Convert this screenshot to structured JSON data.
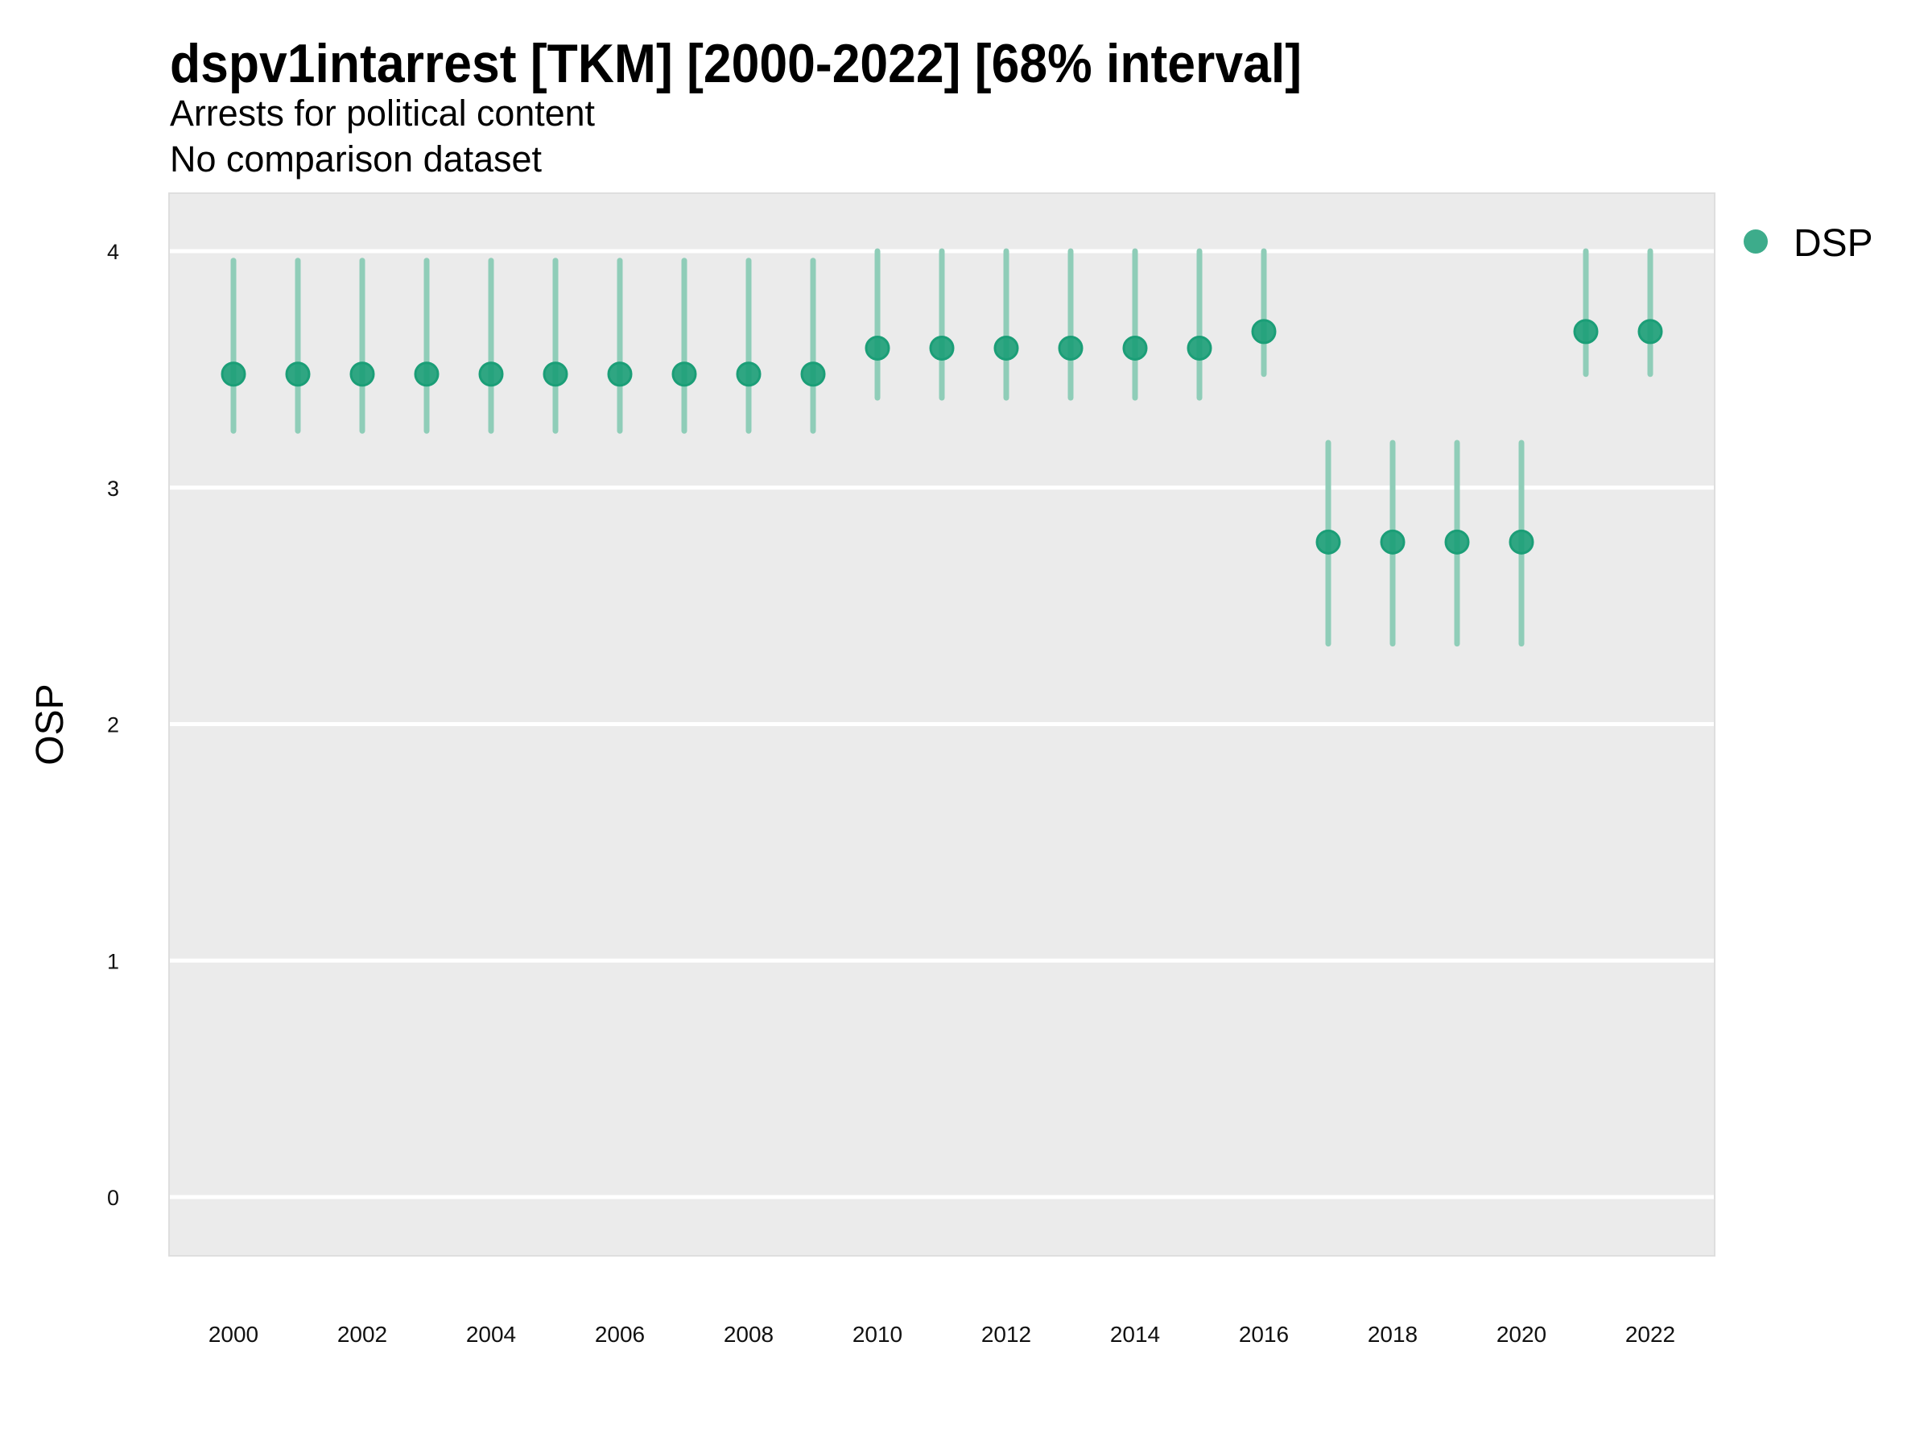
{
  "chart_data": {
    "type": "scatter",
    "title": "dspv1intarrest [TKM] [2000-2022] [68% interval]",
    "subtitle": [
      "Arrests for political content",
      "No comparison dataset"
    ],
    "xlabel": "",
    "ylabel": "OSP",
    "xlim": [
      1999,
      2023.5
    ],
    "ylim": [
      -0.25,
      4.3
    ],
    "grid": true,
    "legend": {
      "position": "right",
      "entries": [
        "DSP"
      ]
    },
    "x_ticks": [
      "2000",
      "2002",
      "2004",
      "2006",
      "2008",
      "2010",
      "2012",
      "2014",
      "2016",
      "2018",
      "2020",
      "2022"
    ],
    "y_ticks": [
      "0",
      "1",
      "2",
      "3",
      "4"
    ],
    "series": [
      {
        "name": "DSP",
        "color": "#1b9e77",
        "x": [
          2000,
          2001,
          2002,
          2003,
          2004,
          2005,
          2006,
          2007,
          2008,
          2009,
          2010,
          2011,
          2012,
          2013,
          2014,
          2015,
          2016,
          2017,
          2018,
          2019,
          2020,
          2021,
          2022
        ],
        "y": [
          3.48,
          3.48,
          3.48,
          3.48,
          3.48,
          3.48,
          3.48,
          3.48,
          3.48,
          3.48,
          3.59,
          3.59,
          3.59,
          3.59,
          3.59,
          3.59,
          3.66,
          2.77,
          2.77,
          2.77,
          2.77,
          3.66,
          3.66
        ],
        "lower": [
          3.24,
          3.24,
          3.24,
          3.24,
          3.24,
          3.24,
          3.24,
          3.24,
          3.24,
          3.24,
          3.38,
          3.38,
          3.38,
          3.38,
          3.38,
          3.38,
          3.48,
          2.34,
          2.34,
          2.34,
          2.34,
          3.48,
          3.48
        ],
        "upper": [
          3.96,
          3.96,
          3.96,
          3.96,
          3.96,
          3.96,
          3.96,
          3.96,
          3.96,
          3.96,
          4.0,
          4.0,
          4.0,
          4.0,
          4.0,
          4.0,
          4.0,
          3.19,
          3.19,
          3.19,
          3.19,
          4.0,
          4.0
        ]
      }
    ],
    "colors": {
      "panel_background": "#ebebeb",
      "gridline": "#ffffff",
      "errorbar": "#8fcdb8",
      "point": "#1b9e77"
    }
  }
}
